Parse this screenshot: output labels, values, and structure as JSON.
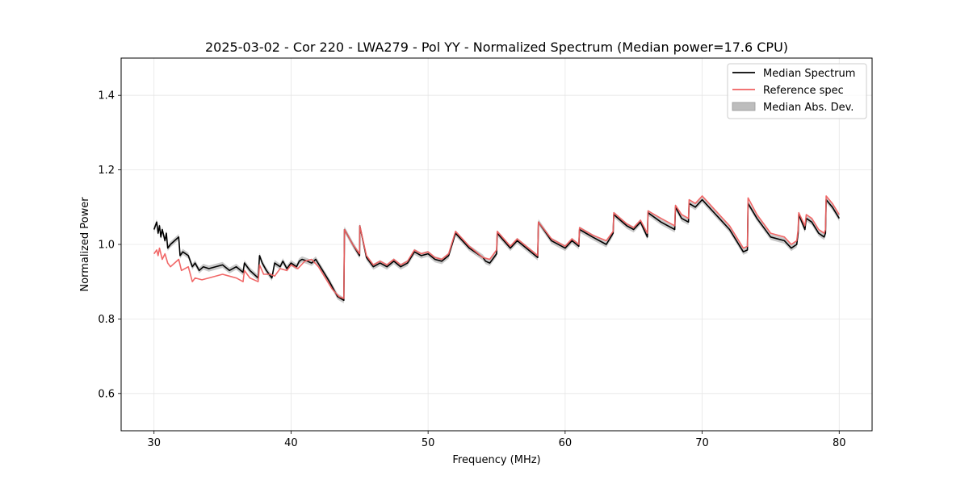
{
  "chart_data": {
    "type": "line",
    "title": "2025-03-02 - Cor 220 - LWA279 - Pol YY - Normalized Spectrum (Median power=17.6 CPU)",
    "xlabel": "Frequency (MHz)",
    "ylabel": "Normalized Power",
    "xlim": [
      27.6,
      82.4
    ],
    "ylim": [
      0.5,
      1.5
    ],
    "xticks": [
      30,
      40,
      50,
      60,
      70,
      80
    ],
    "yticks": [
      0.6,
      0.8,
      1.0,
      1.2,
      1.4
    ],
    "xtick_labels": [
      "30",
      "40",
      "50",
      "60",
      "70",
      "80"
    ],
    "ytick_labels": [
      "0.6",
      "0.8",
      "1.0",
      "1.2",
      "1.4"
    ],
    "grid": true,
    "legend_position": "top-right",
    "legend": [
      "Median Spectrum",
      "Reference spec",
      "Median Abs. Dev."
    ],
    "colors": {
      "median": "#000000",
      "reference": "#f06060",
      "mad": "#bdbdbd"
    },
    "mad_halfwidth": 0.008,
    "series": [
      {
        "name": "Median Spectrum",
        "x": [
          30.0,
          30.2,
          30.3,
          30.4,
          30.5,
          30.6,
          30.8,
          30.9,
          31.0,
          31.2,
          31.5,
          31.8,
          31.9,
          32.1,
          32.5,
          32.8,
          33.0,
          33.3,
          33.6,
          34.0,
          35.0,
          35.5,
          36.0,
          36.5,
          36.6,
          37.0,
          37.6,
          37.7,
          37.9,
          38.2,
          38.4,
          38.6,
          38.8,
          39.2,
          39.4,
          39.7,
          40.0,
          40.4,
          40.6,
          40.8,
          41.2,
          41.5,
          41.8,
          42.3,
          42.8,
          43.4,
          43.85,
          43.9,
          44.5,
          45.0,
          45.02,
          45.5,
          46.0,
          46.5,
          47.0,
          47.5,
          48.0,
          48.5,
          49.0,
          49.5,
          50.0,
          50.5,
          51.0,
          51.5,
          52.0,
          53.0,
          54.0,
          54.2,
          54.5,
          55.0,
          55.05,
          56.0,
          56.5,
          57.0,
          58.0,
          58.05,
          59.0,
          60.0,
          60.5,
          61.0,
          61.05,
          62.0,
          63.0,
          63.5,
          63.55,
          64.5,
          65.0,
          65.5,
          66.0,
          66.05,
          67.0,
          67.5,
          68.0,
          68.05,
          68.5,
          69.0,
          69.05,
          69.5,
          70.0,
          71.0,
          72.0,
          73.0,
          73.3,
          73.35,
          74.0,
          75.0,
          76.0,
          76.5,
          76.9,
          77.0,
          77.05,
          77.5,
          77.6,
          78.0,
          78.5,
          78.9,
          79.0,
          79.05,
          79.5,
          80.0
        ],
        "y": [
          1.04,
          1.06,
          1.03,
          1.05,
          1.02,
          1.04,
          1.01,
          1.03,
          0.99,
          1.0,
          1.01,
          1.02,
          0.97,
          0.98,
          0.97,
          0.94,
          0.95,
          0.93,
          0.94,
          0.935,
          0.945,
          0.93,
          0.94,
          0.925,
          0.95,
          0.93,
          0.91,
          0.97,
          0.95,
          0.93,
          0.92,
          0.91,
          0.95,
          0.94,
          0.955,
          0.935,
          0.95,
          0.94,
          0.955,
          0.96,
          0.955,
          0.95,
          0.96,
          0.93,
          0.9,
          0.86,
          0.85,
          1.04,
          1.0,
          0.97,
          1.05,
          0.965,
          0.94,
          0.95,
          0.94,
          0.955,
          0.94,
          0.95,
          0.98,
          0.97,
          0.975,
          0.96,
          0.955,
          0.97,
          1.03,
          0.99,
          0.965,
          0.955,
          0.95,
          0.975,
          1.03,
          0.99,
          1.01,
          0.995,
          0.965,
          1.06,
          1.01,
          0.99,
          1.01,
          0.995,
          1.04,
          1.02,
          1.0,
          1.03,
          1.08,
          1.05,
          1.04,
          1.06,
          1.02,
          1.085,
          1.06,
          1.05,
          1.04,
          1.1,
          1.07,
          1.06,
          1.11,
          1.1,
          1.12,
          1.08,
          1.04,
          0.98,
          0.985,
          1.11,
          1.07,
          1.02,
          1.01,
          0.99,
          1.0,
          1.03,
          1.08,
          1.04,
          1.07,
          1.06,
          1.03,
          1.02,
          1.03,
          1.12,
          1.1,
          1.07
        ]
      },
      {
        "name": "Reference spec",
        "x": [
          30.0,
          30.2,
          30.3,
          30.4,
          30.6,
          30.8,
          31.0,
          31.2,
          31.5,
          31.8,
          32.0,
          32.5,
          32.8,
          33.0,
          33.5,
          34.0,
          35.0,
          35.5,
          36.0,
          36.5,
          36.6,
          37.0,
          37.6,
          37.7,
          38.0,
          38.5,
          38.8,
          39.2,
          39.7,
          40.0,
          40.5,
          41.0,
          41.5,
          42.0,
          42.5,
          43.0,
          43.5,
          43.85,
          43.9,
          44.5,
          45.0,
          45.02,
          45.5,
          46.0,
          46.5,
          47.0,
          47.5,
          48.0,
          48.5,
          49.0,
          49.5,
          50.0,
          50.5,
          51.0,
          51.5,
          52.0,
          53.0,
          54.0,
          54.5,
          55.0,
          55.05,
          56.0,
          56.5,
          57.0,
          58.0,
          58.05,
          59.0,
          60.0,
          60.5,
          61.0,
          61.05,
          62.0,
          63.0,
          63.5,
          63.55,
          64.5,
          65.0,
          65.5,
          66.0,
          66.05,
          67.0,
          67.5,
          68.0,
          68.05,
          68.5,
          69.0,
          69.05,
          69.5,
          70.0,
          71.0,
          72.0,
          73.0,
          73.3,
          73.35,
          74.0,
          75.0,
          76.0,
          76.5,
          76.9,
          77.0,
          77.05,
          77.5,
          77.6,
          78.0,
          78.5,
          78.9,
          79.0,
          79.05,
          79.5,
          80.0
        ],
        "y": [
          0.975,
          0.985,
          0.97,
          0.99,
          0.96,
          0.975,
          0.95,
          0.94,
          0.95,
          0.96,
          0.93,
          0.94,
          0.9,
          0.91,
          0.905,
          0.91,
          0.92,
          0.915,
          0.91,
          0.9,
          0.93,
          0.91,
          0.9,
          0.945,
          0.92,
          0.92,
          0.915,
          0.935,
          0.93,
          0.945,
          0.935,
          0.955,
          0.96,
          0.94,
          0.91,
          0.88,
          0.86,
          0.855,
          1.04,
          1.0,
          0.975,
          1.05,
          0.97,
          0.945,
          0.955,
          0.945,
          0.96,
          0.945,
          0.955,
          0.985,
          0.975,
          0.98,
          0.965,
          0.96,
          0.975,
          1.035,
          0.995,
          0.965,
          0.96,
          0.985,
          1.035,
          0.995,
          1.015,
          1.0,
          0.97,
          1.06,
          1.015,
          0.995,
          1.015,
          1.0,
          1.045,
          1.025,
          1.01,
          1.035,
          1.085,
          1.055,
          1.045,
          1.065,
          1.03,
          1.09,
          1.07,
          1.06,
          1.05,
          1.105,
          1.08,
          1.07,
          1.12,
          1.11,
          1.13,
          1.09,
          1.05,
          0.99,
          0.995,
          1.125,
          1.08,
          1.03,
          1.02,
          1.0,
          1.01,
          1.04,
          1.085,
          1.05,
          1.08,
          1.07,
          1.04,
          1.03,
          1.04,
          1.13,
          1.11,
          1.08
        ]
      }
    ]
  }
}
